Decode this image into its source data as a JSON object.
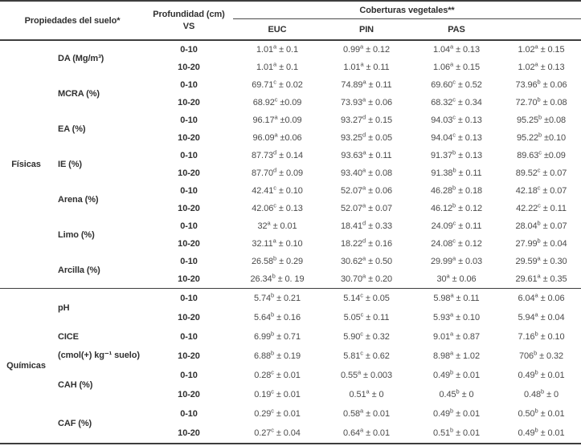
{
  "table": {
    "header": {
      "properties_label": "Propiedades del suelo*",
      "depth_label_line1": "Profundidad (cm)",
      "depth_label_line2": "VS",
      "cover_label": "Coberturas vegetales**",
      "subcolumns": [
        "EUC",
        "PIN",
        "PAS",
        ""
      ]
    },
    "groups": [
      {
        "name": "Físicas",
        "properties": [
          {
            "label": [
              "DA (Mg/m³)"
            ],
            "rows": [
              {
                "depth": "0-10",
                "cells": [
                  {
                    "v": "1.01",
                    "s": "a",
                    "e": "± 0.1"
                  },
                  {
                    "v": "0.99",
                    "s": "a",
                    "e": "± 0.12"
                  },
                  {
                    "v": "1.04",
                    "s": "a",
                    "e": "± 0.13"
                  },
                  {
                    "v": "1.02",
                    "s": "a",
                    "e": "± 0.15"
                  }
                ]
              },
              {
                "depth": "10-20",
                "cells": [
                  {
                    "v": "1.01",
                    "s": "a",
                    "e": "± 0.1"
                  },
                  {
                    "v": "1.01",
                    "s": "a",
                    "e": "± 0.11"
                  },
                  {
                    "v": "1.06",
                    "s": "a",
                    "e": "± 0.15"
                  },
                  {
                    "v": "1.02",
                    "s": "a",
                    "e": "± 0.13"
                  }
                ]
              }
            ]
          },
          {
            "label": [
              "MCRA (%)"
            ],
            "rows": [
              {
                "depth": "0-10",
                "cells": [
                  {
                    "v": "69.71",
                    "s": "c",
                    "e": "± 0.02"
                  },
                  {
                    "v": "74.89",
                    "s": "a",
                    "e": "± 0.11"
                  },
                  {
                    "v": "69.60",
                    "s": "c",
                    "e": "± 0.52"
                  },
                  {
                    "v": "73.96",
                    "s": "b",
                    "e": "± 0.06"
                  }
                ]
              },
              {
                "depth": "10-20",
                "cells": [
                  {
                    "v": "68.92",
                    "s": "c",
                    "e": "±0.09"
                  },
                  {
                    "v": "73.93",
                    "s": "a",
                    "e": "± 0.06"
                  },
                  {
                    "v": "68.32",
                    "s": "c",
                    "e": "± 0.34"
                  },
                  {
                    "v": "72.70",
                    "s": "b",
                    "e": "± 0.08"
                  }
                ]
              }
            ]
          },
          {
            "label": [
              "EA (%)"
            ],
            "rows": [
              {
                "depth": "0-10",
                "cells": [
                  {
                    "v": "96.17",
                    "s": "a",
                    "e": "±0.09"
                  },
                  {
                    "v": "93.27",
                    "s": "d",
                    "e": "± 0.15"
                  },
                  {
                    "v": "94.03",
                    "s": "c",
                    "e": "± 0.13"
                  },
                  {
                    "v": "95.25",
                    "s": "b",
                    "e": "±0.08"
                  }
                ]
              },
              {
                "depth": "10-20",
                "cells": [
                  {
                    "v": "96.09",
                    "s": "a",
                    "e": "±0.06"
                  },
                  {
                    "v": "93.25",
                    "s": "d",
                    "e": "± 0.05"
                  },
                  {
                    "v": "94.04",
                    "s": "c",
                    "e": "± 0.13"
                  },
                  {
                    "v": "95.22",
                    "s": "b",
                    "e": "±0.10"
                  }
                ]
              }
            ]
          },
          {
            "label": [
              "IE (%)"
            ],
            "rows": [
              {
                "depth": "0-10",
                "cells": [
                  {
                    "v": "87.73",
                    "s": "d",
                    "e": "± 0.14"
                  },
                  {
                    "v": "93.63",
                    "s": "a",
                    "e": "± 0.11"
                  },
                  {
                    "v": "91.37",
                    "s": "b",
                    "e": "± 0.13"
                  },
                  {
                    "v": "89.63",
                    "s": "c",
                    "e": "±0.09"
                  }
                ]
              },
              {
                "depth": "10-20",
                "cells": [
                  {
                    "v": "87.70",
                    "s": "d",
                    "e": "± 0.09"
                  },
                  {
                    "v": "93.40",
                    "s": "a",
                    "e": "± 0.08"
                  },
                  {
                    "v": "91.38",
                    "s": "b",
                    "e": "± 0.11"
                  },
                  {
                    "v": "89.52",
                    "s": "c",
                    "e": "± 0.07"
                  }
                ]
              }
            ]
          },
          {
            "label": [
              "Arena (%)"
            ],
            "rows": [
              {
                "depth": "0-10",
                "cells": [
                  {
                    "v": "42.41",
                    "s": "c",
                    "e": "± 0.10"
                  },
                  {
                    "v": "52.07",
                    "s": "a",
                    "e": "± 0.06"
                  },
                  {
                    "v": "46.28",
                    "s": "b",
                    "e": "± 0.18"
                  },
                  {
                    "v": "42.18",
                    "s": "c",
                    "e": "± 0.07"
                  }
                ]
              },
              {
                "depth": "10-20",
                "cells": [
                  {
                    "v": "42.06",
                    "s": "c",
                    "e": "± 0.13"
                  },
                  {
                    "v": "52.07",
                    "s": "a",
                    "e": "± 0.07"
                  },
                  {
                    "v": "46.12",
                    "s": "b",
                    "e": "± 0.12"
                  },
                  {
                    "v": "42.22",
                    "s": "c",
                    "e": "± 0.11"
                  }
                ]
              }
            ]
          },
          {
            "label": [
              "Limo (%)"
            ],
            "rows": [
              {
                "depth": "0-10",
                "cells": [
                  {
                    "v": "32",
                    "s": "a",
                    "e": "± 0.01"
                  },
                  {
                    "v": "18.41",
                    "s": "d",
                    "e": "± 0.33"
                  },
                  {
                    "v": "24.09",
                    "s": "c",
                    "e": "± 0.11"
                  },
                  {
                    "v": "28.04",
                    "s": "b",
                    "e": "± 0.07"
                  }
                ]
              },
              {
                "depth": "10-20",
                "cells": [
                  {
                    "v": "32.11",
                    "s": "a",
                    "e": "± 0.10"
                  },
                  {
                    "v": "18.22",
                    "s": "d",
                    "e": "± 0.16"
                  },
                  {
                    "v": "24.08",
                    "s": "c",
                    "e": "± 0.12"
                  },
                  {
                    "v": "27.99",
                    "s": "b",
                    "e": "± 0.04"
                  }
                ]
              }
            ]
          },
          {
            "label": [
              "Arcilla (%)"
            ],
            "rows": [
              {
                "depth": "0-10",
                "cells": [
                  {
                    "v": "26.58",
                    "s": "b",
                    "e": "± 0.29"
                  },
                  {
                    "v": "30.62",
                    "s": "a",
                    "e": "± 0.50"
                  },
                  {
                    "v": "29.99",
                    "s": "a",
                    "e": "± 0.03"
                  },
                  {
                    "v": "29.59",
                    "s": "a",
                    "e": "± 0.30"
                  }
                ]
              },
              {
                "depth": "10-20",
                "cells": [
                  {
                    "v": "26.34",
                    "s": "b",
                    "e": "± 0. 19"
                  },
                  {
                    "v": "30.70",
                    "s": "a",
                    "e": "± 0.20"
                  },
                  {
                    "v": "30",
                    "s": "a",
                    "e": "± 0.06"
                  },
                  {
                    "v": "29.61",
                    "s": "a",
                    "e": "± 0.35"
                  }
                ]
              }
            ]
          }
        ]
      },
      {
        "name": "Químicas",
        "properties": [
          {
            "label": [
              "pH"
            ],
            "rows": [
              {
                "depth": "0-10",
                "cells": [
                  {
                    "v": "5.74",
                    "s": "b",
                    "e": "± 0.21"
                  },
                  {
                    "v": "5.14",
                    "s": "c",
                    "e": "± 0.05"
                  },
                  {
                    "v": "5.98",
                    "s": "a",
                    "e": "± 0.11"
                  },
                  {
                    "v": "6.04",
                    "s": "a",
                    "e": "± 0.06"
                  }
                ]
              },
              {
                "depth": "10-20",
                "cells": [
                  {
                    "v": "5.64",
                    "s": "b",
                    "e": "± 0.16"
                  },
                  {
                    "v": "5.05",
                    "s": "c",
                    "e": "± 0.11"
                  },
                  {
                    "v": "5.93",
                    "s": "a",
                    "e": "± 0.10"
                  },
                  {
                    "v": "5.94",
                    "s": "a",
                    "e": "± 0.04"
                  }
                ]
              }
            ]
          },
          {
            "label": [
              "CICE",
              "(cmol(+) kg⁻¹ suelo)"
            ],
            "rows": [
              {
                "depth": "0-10",
                "cells": [
                  {
                    "v": "6.99",
                    "s": "b",
                    "e": "± 0.71"
                  },
                  {
                    "v": "5.90",
                    "s": "c",
                    "e": "± 0.32"
                  },
                  {
                    "v": "9.01",
                    "s": "a",
                    "e": "± 0.87"
                  },
                  {
                    "v": "7.16",
                    "s": "b",
                    "e": "± 0.10"
                  }
                ]
              },
              {
                "depth": "10-20",
                "cells": [
                  {
                    "v": "6.88",
                    "s": "b",
                    "e": "± 0.19"
                  },
                  {
                    "v": "5.81",
                    "s": "c",
                    "e": "± 0.62"
                  },
                  {
                    "v": "8.98",
                    "s": "a",
                    "e": "± 1.02"
                  },
                  {
                    "v": "706",
                    "s": "b",
                    "e": "± 0.32"
                  }
                ]
              }
            ]
          },
          {
            "label": [
              "CAH (%)"
            ],
            "rows": [
              {
                "depth": "0-10",
                "cells": [
                  {
                    "v": "0.28",
                    "s": "c",
                    "e": "± 0.01"
                  },
                  {
                    "v": "0.55",
                    "s": "a",
                    "e": "± 0.003"
                  },
                  {
                    "v": "0.49",
                    "s": "b",
                    "e": "± 0.01"
                  },
                  {
                    "v": "0.49",
                    "s": "b",
                    "e": "± 0.01"
                  }
                ]
              },
              {
                "depth": "10-20",
                "cells": [
                  {
                    "v": "0.19",
                    "s": "c",
                    "e": "± 0.01"
                  },
                  {
                    "v": "0.51",
                    "s": "a",
                    "e": "± 0"
                  },
                  {
                    "v": "0.45",
                    "s": "b",
                    "e": "± 0"
                  },
                  {
                    "v": "0.48",
                    "s": "b",
                    "e": "± 0"
                  }
                ]
              }
            ]
          },
          {
            "label": [
              "CAF (%)"
            ],
            "rows": [
              {
                "depth": "0-10",
                "cells": [
                  {
                    "v": "0.29",
                    "s": "c",
                    "e": "± 0.01"
                  },
                  {
                    "v": "0.58",
                    "s": "a",
                    "e": "± 0.01"
                  },
                  {
                    "v": "0.49",
                    "s": "b",
                    "e": "± 0.01"
                  },
                  {
                    "v": "0.50",
                    "s": "b",
                    "e": "± 0.01"
                  }
                ]
              },
              {
                "depth": "10-20",
                "cells": [
                  {
                    "v": "0.27",
                    "s": "c",
                    "e": "± 0.04"
                  },
                  {
                    "v": "0.64",
                    "s": "a",
                    "e": "± 0.01"
                  },
                  {
                    "v": "0.51",
                    "s": "b",
                    "e": "± 0.01"
                  },
                  {
                    "v": "0.49",
                    "s": "b",
                    "e": "± 0.01"
                  }
                ]
              }
            ]
          }
        ]
      }
    ]
  }
}
